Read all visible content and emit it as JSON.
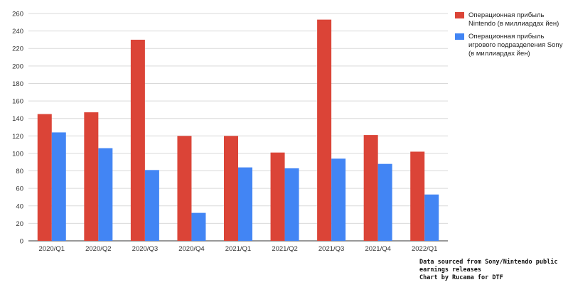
{
  "chart_data": {
    "type": "bar",
    "categories": [
      "2020/Q1",
      "2020/Q2",
      "2020/Q3",
      "2020/Q4",
      "2021/Q1",
      "2021/Q2",
      "2021/Q3",
      "2021/Q4",
      "2022/Q1"
    ],
    "series": [
      {
        "name": "Операционная прибыль Nintendo (в миллиардах йен)",
        "color": "#db4437",
        "values": [
          145,
          147,
          230,
          120,
          120,
          101,
          253,
          121,
          102
        ]
      },
      {
        "name": "Операционная прибыль игрового подразделения Sony (в миллиардах йен)",
        "color": "#4285f4",
        "values": [
          124,
          106,
          81,
          32,
          84,
          83,
          94,
          88,
          53
        ]
      }
    ],
    "yticks": [
      0,
      20,
      40,
      60,
      80,
      100,
      120,
      140,
      160,
      180,
      200,
      220,
      240,
      260
    ],
    "ylim": [
      0,
      260
    ],
    "grid": true,
    "legend_position": "right"
  },
  "source_note": {
    "line1": "Data sourced from Sony/Nintendo public earnings releases",
    "line2": "Chart by Rucama for DTF"
  }
}
